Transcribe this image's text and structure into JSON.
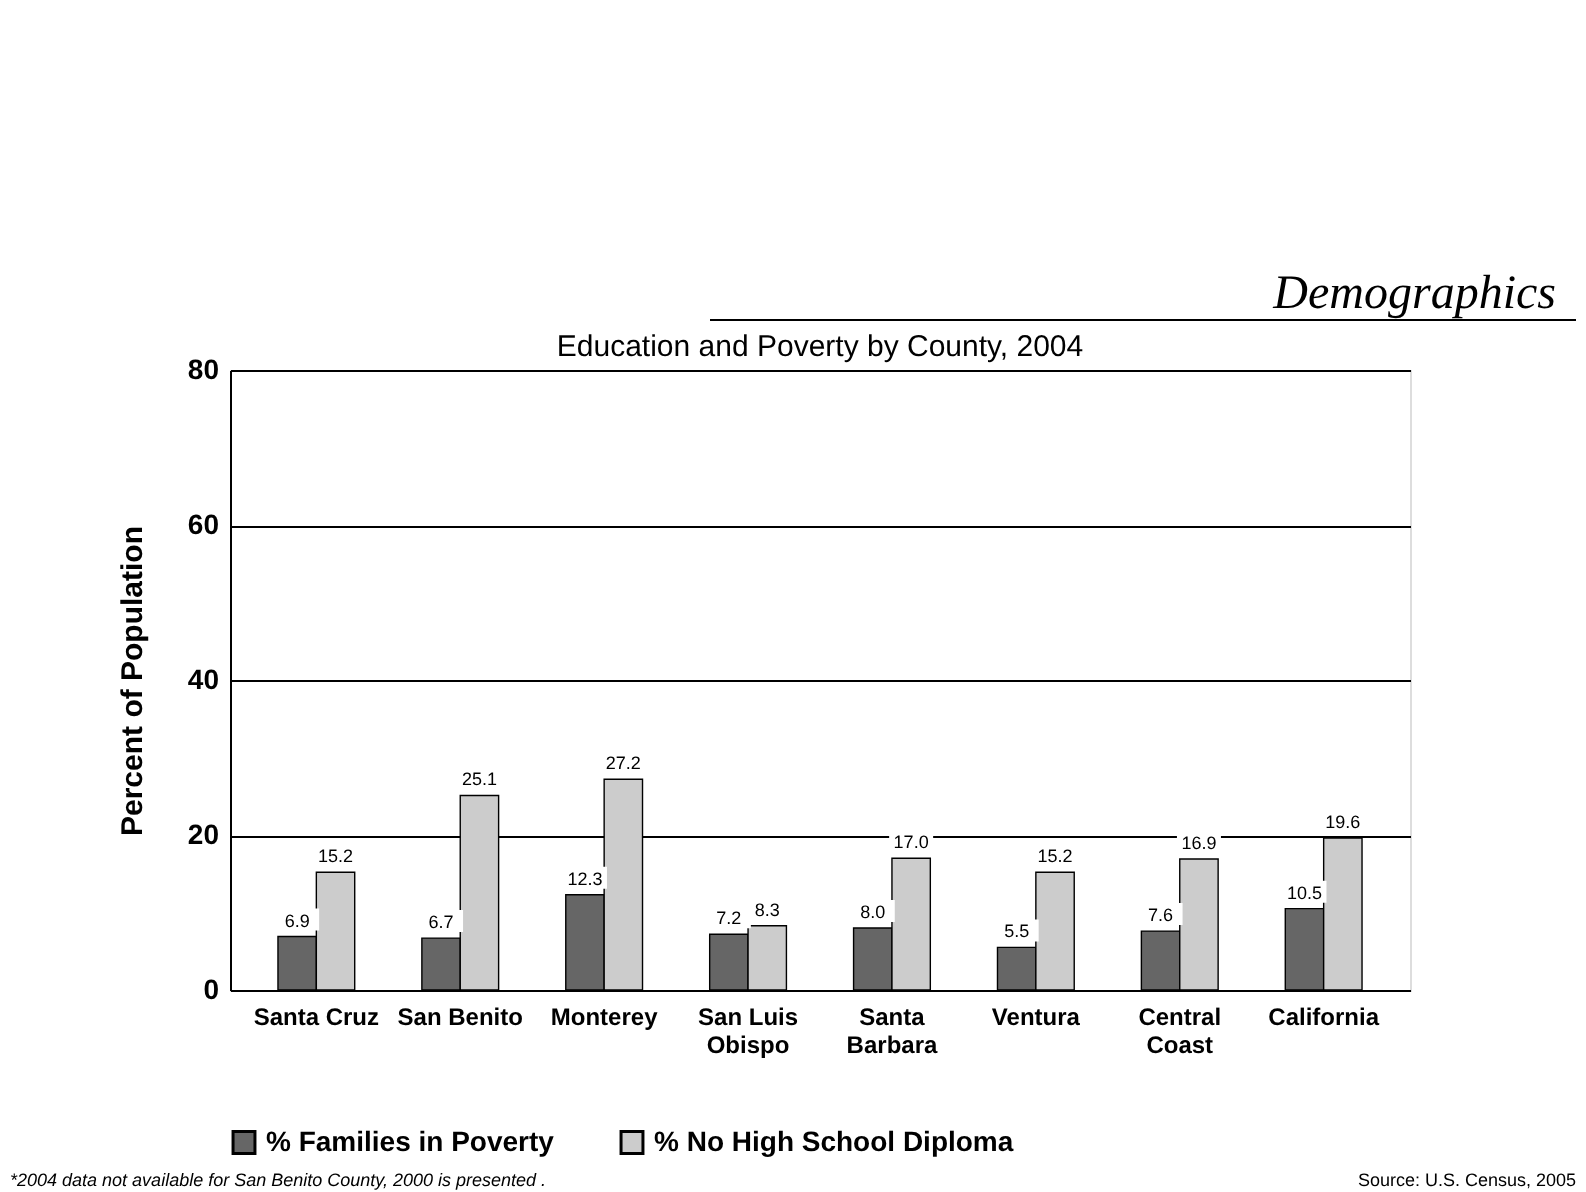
{
  "chart_data": {
    "type": "bar",
    "title": "Education and Poverty by County, 2004",
    "subtitle": "Demographics",
    "ylabel": "Percent of Population",
    "categories": [
      "Santa Cruz",
      "San Benito",
      "Monterey",
      "San Luis Obispo",
      "Santa Barbara",
      "Ventura",
      "Central Coast",
      "California"
    ],
    "series": [
      {
        "name": "% Families in Poverty",
        "color": "#666666",
        "values": [
          6.9,
          6.7,
          12.3,
          7.2,
          8.0,
          5.5,
          7.6,
          10.5
        ],
        "value_labels": [
          "6.9",
          "6.7",
          "12.3",
          "7.2",
          "8.0",
          "5.5",
          "7.6",
          "10.5"
        ]
      },
      {
        "name": "% No High School Diploma",
        "color": "#cccccc",
        "values": [
          15.2,
          25.1,
          27.2,
          8.3,
          17.0,
          15.2,
          16.9,
          19.6
        ],
        "value_labels": [
          "15.2",
          "25.1",
          "27.2",
          "8.3",
          "17.0",
          "15.2",
          "16.9",
          "19.6"
        ]
      }
    ],
    "ylim": [
      0,
      80
    ],
    "yticks": [
      0,
      20,
      40,
      60,
      80
    ],
    "grid": "y",
    "legend": "bottom",
    "annotations": [
      "*2004 data not available for San Benito County, 2000 is presented .",
      "Source: U.S. Census, 2005"
    ]
  }
}
